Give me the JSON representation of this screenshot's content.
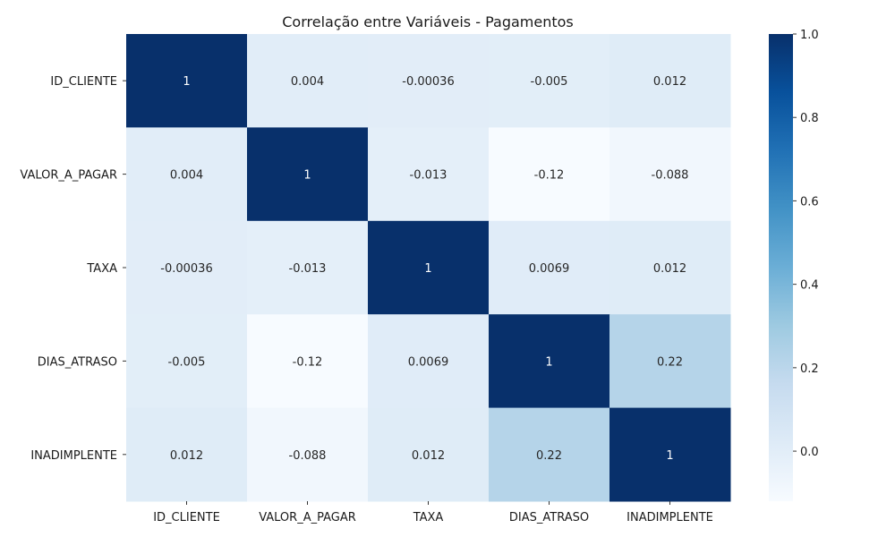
{
  "chart_data": {
    "type": "heatmap",
    "title": "Correlação entre Variáveis - Pagamentos",
    "xlabel": "",
    "ylabel": "",
    "x_categories": [
      "ID_CLIENTE",
      "VALOR_A_PAGAR",
      "TAXA",
      "DIAS_ATRASO",
      "INADIMPLENTE"
    ],
    "y_categories": [
      "ID_CLIENTE",
      "VALOR_A_PAGAR",
      "TAXA",
      "DIAS_ATRASO",
      "INADIMPLENTE"
    ],
    "values": [
      [
        1,
        0.004,
        -0.00036,
        -0.005,
        0.012
      ],
      [
        0.004,
        1,
        -0.013,
        -0.12,
        -0.088
      ],
      [
        -0.00036,
        -0.013,
        1,
        0.0069,
        0.012
      ],
      [
        -0.005,
        -0.12,
        0.0069,
        1,
        0.22
      ],
      [
        0.012,
        -0.088,
        0.012,
        0.22,
        1
      ]
    ],
    "annotations": [
      [
        "1",
        "0.004",
        "-0.00036",
        "-0.005",
        "0.012"
      ],
      [
        "0.004",
        "1",
        "-0.013",
        "-0.12",
        "-0.088"
      ],
      [
        "-0.00036",
        "-0.013",
        "1",
        "0.0069",
        "0.012"
      ],
      [
        "-0.005",
        "-0.12",
        "0.0069",
        "1",
        "0.22"
      ],
      [
        "0.012",
        "-0.088",
        "0.012",
        "0.22",
        "1"
      ]
    ],
    "colormap": "Blues",
    "color_range": [
      -0.12,
      1
    ],
    "colorbar": {
      "ticks": [
        0.0,
        0.2,
        0.4,
        0.6,
        0.8,
        1.0
      ],
      "tick_labels": [
        "0.0",
        "0.2",
        "0.4",
        "0.6",
        "0.8",
        "1.0"
      ],
      "placement": "right"
    },
    "grid": false
  }
}
